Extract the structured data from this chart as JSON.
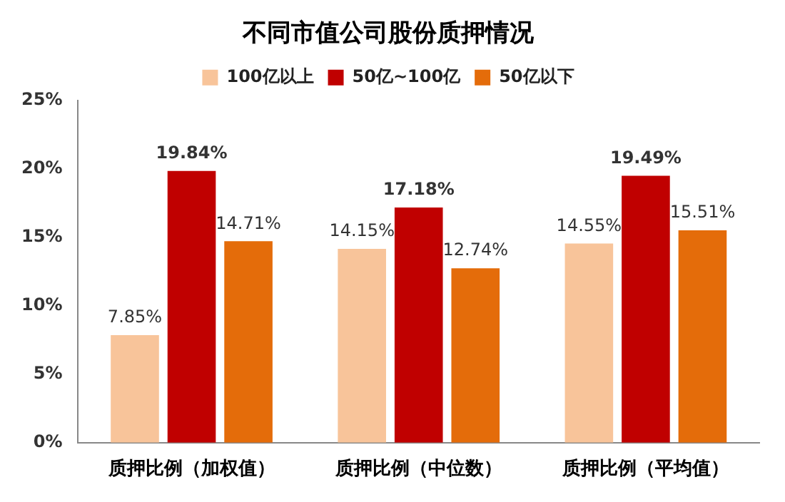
{
  "chart_data": {
    "type": "bar",
    "title": "不同市值公司股份质押情况",
    "categories": [
      "质押比例（加权值）",
      "质押比例（中位数）",
      "质押比例（平均值）"
    ],
    "series": [
      {
        "name": "100亿以上",
        "color": "#f8c49a",
        "values": [
          7.85,
          14.15,
          14.55
        ],
        "value_labels": [
          "7.85%",
          "14.15%",
          "14.55%"
        ]
      },
      {
        "name": "50亿~100亿",
        "color": "#c00000",
        "values": [
          19.84,
          17.18,
          19.49
        ],
        "value_labels": [
          "19.84%",
          "17.18%",
          "19.49%"
        ]
      },
      {
        "name": "50亿以下",
        "color": "#e46c0a",
        "values": [
          14.71,
          12.74,
          15.51
        ],
        "value_labels": [
          "14.71%",
          "12.74%",
          "15.51%"
        ]
      }
    ],
    "ylim": [
      0,
      25
    ],
    "yticks": [
      {
        "value": 0,
        "label": "0%"
      },
      {
        "value": 5,
        "label": "5%"
      },
      {
        "value": 10,
        "label": "10%"
      },
      {
        "value": 15,
        "label": "15%"
      },
      {
        "value": 20,
        "label": "20%"
      },
      {
        "value": 25,
        "label": "25%"
      }
    ],
    "grid": false,
    "legend": "top"
  }
}
